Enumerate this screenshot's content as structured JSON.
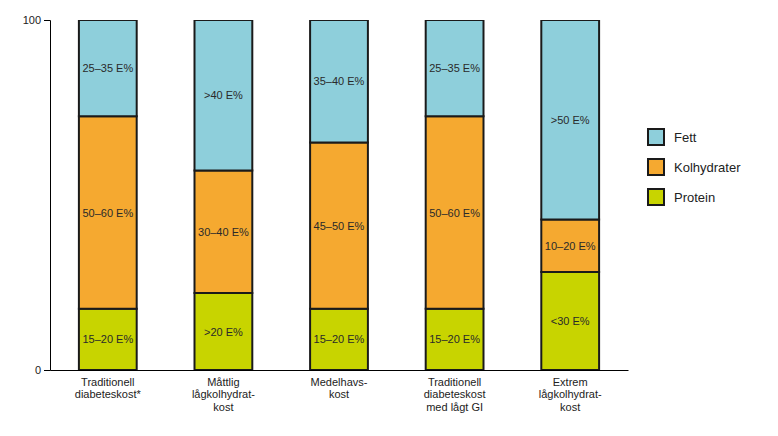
{
  "chart_data": {
    "type": "bar",
    "stacked": true,
    "data_labels": true,
    "grid": false,
    "legend": "right",
    "categories": [
      "Traditionell\ndiabeteskost*",
      "Måttlig\nlågkolhydrat-\nkost",
      "Medelhavs-\nkost",
      "Traditionell\ndiabeteskost\nmed lågt GI",
      "Extrem\nlågkolhydrat-\nkost"
    ],
    "series": [
      {
        "name": "Protein",
        "color": "#c8d400",
        "values": [
          17.5,
          22,
          17.5,
          17.5,
          28
        ],
        "value_labels": [
          "15–20 E%",
          ">20 E%",
          "15–20 E%",
          "15–20 E%",
          "<30 E%"
        ]
      },
      {
        "name": "Kolhydrater",
        "color": "#f5a930",
        "values": [
          55,
          35,
          47.5,
          55,
          15
        ],
        "value_labels": [
          "50–60 E%",
          "30–40 E%",
          "45–50 E%",
          "50–60 E%",
          "10–20 E%"
        ]
      },
      {
        "name": "Fett",
        "color": "#8ecfdb",
        "values": [
          27.5,
          43,
          35,
          27.5,
          57
        ],
        "value_labels": [
          "25–35 E%",
          ">40 E%",
          "35–40 E%",
          "25–35 E%",
          ">50 E%"
        ]
      }
    ],
    "ylim": [
      0,
      100
    ],
    "yticks": [
      0,
      100
    ]
  }
}
